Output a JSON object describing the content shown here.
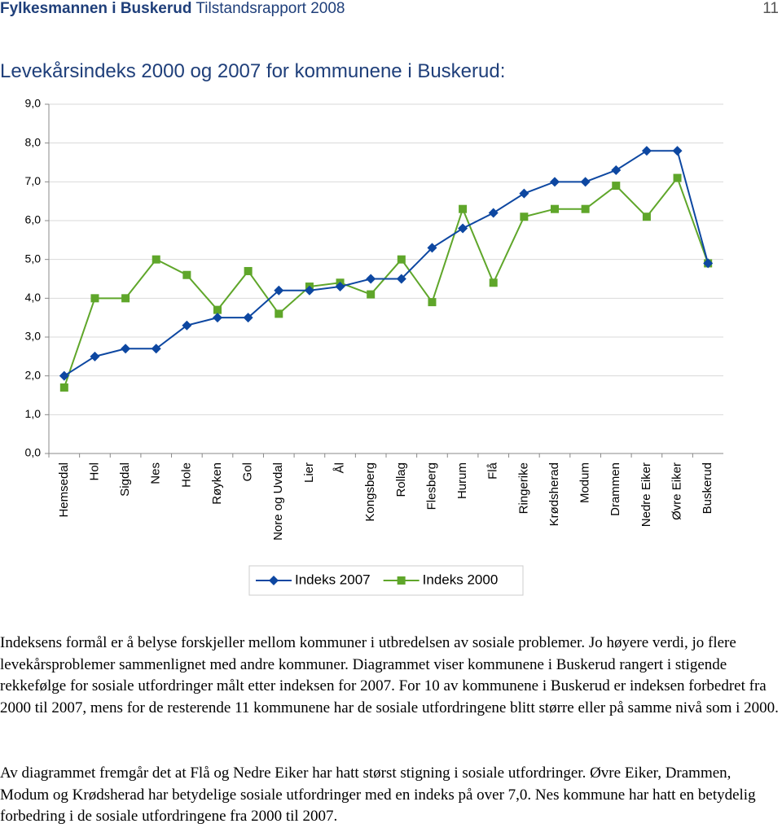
{
  "header": {
    "organization": "Fylkesmannen i Buskerud",
    "report": "Tilstandsrapport 2008",
    "page_number": "11"
  },
  "chart_data": {
    "type": "line",
    "title": "Levekårsindeks 2000 og 2007 for kommunene i Buskerud:",
    "categories": [
      "Hemsedal",
      "Hol",
      "Sigdal",
      "Nes",
      "Hole",
      "Røyken",
      "Gol",
      "Nore og Uvdal",
      "Lier",
      "Ål",
      "Kongsberg",
      "Rollag",
      "Flesberg",
      "Hurum",
      "Flå",
      "Ringerike",
      "Krødsherad",
      "Modum",
      "Drammen",
      "Nedre Eiker",
      "Øvre Eiker",
      "Buskerud"
    ],
    "series": [
      {
        "name": "Indeks 2007",
        "color": "#0d47a1",
        "marker": "diamond",
        "values": [
          2.0,
          2.5,
          2.7,
          2.7,
          3.3,
          3.5,
          3.5,
          4.2,
          4.2,
          4.3,
          4.5,
          4.5,
          5.3,
          5.8,
          6.2,
          6.7,
          7.0,
          7.0,
          7.3,
          7.8,
          7.8,
          4.9
        ]
      },
      {
        "name": "Indeks 2000",
        "color": "#5fa62a",
        "marker": "square",
        "values": [
          1.7,
          4.0,
          4.0,
          5.0,
          4.6,
          3.7,
          4.7,
          3.6,
          4.3,
          4.4,
          4.1,
          5.0,
          3.9,
          6.3,
          4.4,
          6.1,
          6.3,
          6.3,
          6.9,
          6.1,
          7.1,
          4.9
        ]
      }
    ],
    "ylim": [
      0,
      9
    ],
    "yticks": [
      {
        "value": 0,
        "label": "0,0"
      },
      {
        "value": 1,
        "label": "1,0"
      },
      {
        "value": 2,
        "label": "2,0"
      },
      {
        "value": 3,
        "label": "3,0"
      },
      {
        "value": 4,
        "label": "4,0"
      },
      {
        "value": 5,
        "label": "5,0"
      },
      {
        "value": 6,
        "label": "6,0"
      },
      {
        "value": 7,
        "label": "7,0"
      },
      {
        "value": 8,
        "label": "8,0"
      },
      {
        "value": 9,
        "label": "9,0"
      }
    ],
    "grid": true,
    "legend": "bottom"
  },
  "paragraphs": [
    "Indeksens formål er å belyse forskjeller mellom kommuner i utbredelsen av sosiale problemer. Jo høyere verdi, jo flere levekårsproblemer sammenlignet med andre kommuner. Diagrammet viser kommunene i Buskerud rangert i stigende rekkefølge for sosiale utfordringer målt etter indeksen for 2007.  For 10 av kommunene i Buskerud er indeksen forbedret fra 2000 til 2007, mens for de resterende 11 kommunene har de sosiale utfordringene blitt større eller på samme nivå som i 2000.",
    "Av diagrammet fremgår det at Flå og Nedre Eiker har hatt størst stigning i sosiale utfordringer.  Øvre Eiker, Drammen, Modum og Krødsherad har betydelige sosiale utfordringer med en indeks på over 7,0.  Nes kommune har hatt en betydelig forbedring i de sosiale utfordringene fra 2000 til 2007."
  ]
}
